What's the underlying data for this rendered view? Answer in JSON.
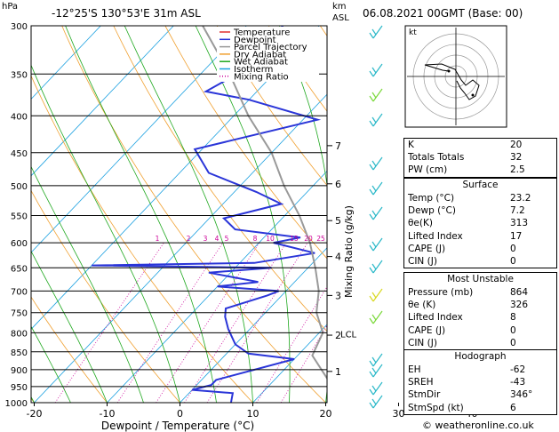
{
  "header": {
    "hpa_label": "hPa",
    "location": "-12°25'S  130°53'E  31m  ASL",
    "km_label": "km",
    "asl_label": "ASL",
    "datetime": "06.08.2021  00GMT  (Base: 00)"
  },
  "legend": [
    {
      "label": "Temperature",
      "color": "#e0302f"
    },
    {
      "label": "Dewpoint",
      "color": "#2a35d8"
    },
    {
      "label": "Parcel Trajectory",
      "color": "#999999"
    },
    {
      "label": "Dry Adiabat",
      "color": "#f0a030"
    },
    {
      "label": "Wet Adiabat",
      "color": "#1fa81f"
    },
    {
      "label": "Isotherm",
      "color": "#1aa0e0"
    },
    {
      "label": "Mixing Ratio",
      "color": "#cc0099"
    }
  ],
  "chart_data": {
    "type": "line",
    "xlabel": "Dewpoint / Temperature (°C)",
    "ylabel": "hPa",
    "right_axis_label": "Mixing Ratio (g/kg)",
    "x_ticks": [
      -30,
      -20,
      -10,
      0,
      10,
      20,
      30,
      40
    ],
    "pressure_ticks": [
      300,
      350,
      400,
      450,
      500,
      550,
      600,
      650,
      700,
      750,
      800,
      850,
      900,
      950,
      1000
    ],
    "km_ticks": [
      {
        "km": "7",
        "p": 440
      },
      {
        "km": "6",
        "p": 497
      },
      {
        "km": "5",
        "p": 559
      },
      {
        "km": "4",
        "p": 627
      },
      {
        "km": "3",
        "p": 710
      },
      {
        "km": "2",
        "p": 806
      },
      {
        "km": "1",
        "p": 905
      }
    ],
    "lcl": {
      "label": "LCL",
      "p": 802
    },
    "mixing_ratio_labels": [
      "1",
      "2",
      "3",
      "4",
      "5",
      "8",
      "10",
      "15",
      "20",
      "25"
    ],
    "series": [
      {
        "name": "Temperature",
        "points": [
          [
            28.5,
            1000
          ],
          [
            25,
            970
          ],
          [
            23.5,
            950
          ],
          [
            24,
            930
          ],
          [
            22.5,
            900
          ],
          [
            21,
            870
          ],
          [
            20,
            850
          ],
          [
            18,
            800
          ],
          [
            15,
            760
          ],
          [
            13.5,
            730
          ],
          [
            12,
            700
          ],
          [
            11.5,
            670
          ],
          [
            11,
            650
          ],
          [
            9,
            620
          ],
          [
            8,
            600
          ],
          [
            6.5,
            570
          ],
          [
            5,
            550
          ],
          [
            3,
            500
          ],
          [
            0,
            470
          ],
          [
            -3,
            440
          ],
          [
            -6,
            420
          ],
          [
            -9,
            400
          ],
          [
            -11,
            380
          ],
          [
            -15,
            360
          ],
          [
            -19,
            340
          ],
          [
            -24,
            320
          ],
          [
            -28,
            305
          ]
        ]
      },
      {
        "name": "Dewpoint",
        "points": [
          [
            7,
            1000
          ],
          [
            6,
            970
          ],
          [
            0,
            960
          ],
          [
            2,
            945
          ],
          [
            2,
            930
          ],
          [
            10,
            870
          ],
          [
            3,
            855
          ],
          [
            0,
            830
          ],
          [
            -3,
            790
          ],
          [
            -5,
            760
          ],
          [
            -6,
            740
          ],
          [
            -2,
            710
          ],
          [
            -1,
            700
          ],
          [
            -10,
            690
          ],
          [
            -5,
            680
          ],
          [
            -13,
            660
          ],
          [
            -5,
            650
          ],
          [
            -30,
            645
          ],
          [
            -8,
            640
          ],
          [
            -1,
            620
          ],
          [
            -8,
            600
          ],
          [
            -5,
            590
          ],
          [
            -15,
            575
          ],
          [
            -18,
            555
          ],
          [
            -12,
            530
          ],
          [
            -17,
            510
          ],
          [
            -26,
            480
          ],
          [
            -31,
            445
          ],
          [
            -18,
            405
          ],
          [
            -30,
            380
          ],
          [
            -37,
            370
          ],
          [
            -35,
            350
          ],
          [
            -35,
            320
          ],
          [
            -35,
            300
          ]
        ]
      },
      {
        "name": "Parcel Trajectory",
        "points": [
          [
            23,
            1000
          ],
          [
            17,
            925
          ],
          [
            12,
            860
          ],
          [
            10.5,
            800
          ],
          [
            7,
            750
          ],
          [
            4.5,
            700
          ],
          [
            1,
            650
          ],
          [
            -3,
            600
          ],
          [
            -8,
            550
          ],
          [
            -14,
            500
          ],
          [
            -20,
            450
          ],
          [
            -28,
            400
          ],
          [
            -36,
            350
          ],
          [
            -46,
            300
          ]
        ]
      }
    ]
  },
  "indices": [
    {
      "label": "K",
      "value": "20"
    },
    {
      "label": "Totals Totals",
      "value": "32"
    },
    {
      "label": "PW (cm)",
      "value": "2.5"
    }
  ],
  "surface": {
    "title": "Surface",
    "rows": [
      {
        "label": "Temp (°C)",
        "value": "23.2"
      },
      {
        "label": "Dewp (°C)",
        "value": "7.2"
      },
      {
        "label": "θe(K)",
        "value": "313"
      },
      {
        "label": "Lifted Index",
        "value": "17"
      },
      {
        "label": "CAPE (J)",
        "value": "0"
      },
      {
        "label": "CIN (J)",
        "value": "0"
      }
    ]
  },
  "most_unstable": {
    "title": "Most Unstable",
    "rows": [
      {
        "label": "Pressure (mb)",
        "value": "864"
      },
      {
        "label": "θe (K)",
        "value": "326"
      },
      {
        "label": "Lifted Index",
        "value": "8"
      },
      {
        "label": "CAPE (J)",
        "value": "0"
      },
      {
        "label": "CIN (J)",
        "value": "0"
      }
    ]
  },
  "hodograph": {
    "title": "Hodograph",
    "rows": [
      {
        "label": "EH",
        "value": "-62"
      },
      {
        "label": "SREH",
        "value": "-43"
      },
      {
        "label": "StmDir",
        "value": "346°"
      },
      {
        "label": "StmSpd (kt)",
        "value": "6"
      }
    ]
  },
  "hodo_panel": {
    "kt_label": "kt"
  },
  "footer": "© weatheronline.co.uk"
}
